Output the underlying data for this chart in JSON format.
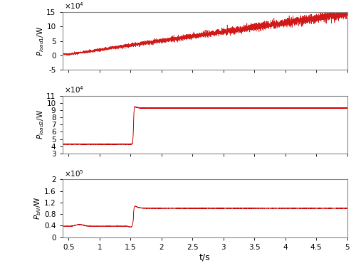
{
  "xlabel": "t/s",
  "ylabels": [
    "$P_{load1}$/W",
    "$P_{load2}$/W",
    "$P_{bill}$/W"
  ],
  "xlim": [
    0.4,
    5.0
  ],
  "xticks": [
    0.5,
    1.0,
    1.5,
    2.0,
    2.5,
    3.0,
    3.5,
    4.0,
    4.5,
    5.0
  ],
  "xtick_labels": [
    "0.5",
    "1",
    "1.5",
    "2",
    "2.5",
    "3",
    "3.5",
    "4",
    "4.5",
    "5"
  ],
  "subplot1": {
    "ylim": [
      -50000,
      150000
    ],
    "yticks": [
      -50000,
      0,
      50000,
      100000,
      150000
    ],
    "ytick_labels": [
      "-5",
      "0",
      "5",
      "10",
      "15"
    ],
    "scale_label": "$\\times10^4$"
  },
  "subplot2": {
    "ylim": [
      30000,
      110000
    ],
    "yticks": [
      30000,
      40000,
      50000,
      60000,
      70000,
      80000,
      90000,
      100000,
      110000
    ],
    "ytick_labels": [
      "3",
      "4",
      "5",
      "6",
      "7",
      "8",
      "9",
      "10",
      "11"
    ],
    "scale_label": "$\\times10^4$"
  },
  "subplot3": {
    "ylim": [
      0,
      200000
    ],
    "yticks": [
      0,
      40000,
      80000,
      120000,
      160000,
      200000
    ],
    "ytick_labels": [
      "0",
      "0.4",
      "0.8",
      "1.2",
      "1.6",
      "2"
    ],
    "scale_label": "$\\times10^5$"
  },
  "line_color": "#cc0000",
  "t_start": 0.4,
  "t_end": 5.0,
  "t_switch": 1.55,
  "n_points": 5000,
  "noise_seed": 42
}
